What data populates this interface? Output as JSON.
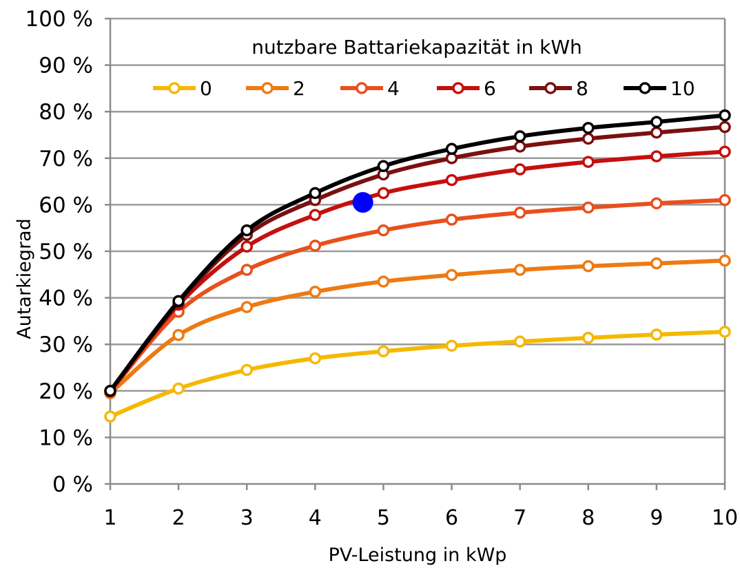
{
  "chart_data": {
    "type": "line",
    "xlabel": "PV-Leistung in kWp",
    "ylabel": "Autarkiegrad",
    "legend_title": "nutzbare Battariekapazität in kWh",
    "legend_position": "top-inside",
    "x": [
      1,
      2,
      3,
      4,
      5,
      6,
      7,
      8,
      9,
      10
    ],
    "xlim": [
      1,
      10
    ],
    "ylim": [
      0,
      100
    ],
    "y_ticks": [
      "0 %",
      "10 %",
      "20 %",
      "30 %",
      "40 %",
      "50 %",
      "60 %",
      "70 %",
      "80 %",
      "90 %",
      "100 %"
    ],
    "x_ticks": [
      "1",
      "2",
      "3",
      "4",
      "5",
      "6",
      "7",
      "8",
      "9",
      "10"
    ],
    "grid": "horizontal",
    "series": [
      {
        "name": "0",
        "color": "#F5B800",
        "values": [
          14.5,
          20.5,
          24.5,
          27,
          28.5,
          29.7,
          30.6,
          31.4,
          32.1,
          32.7
        ]
      },
      {
        "name": "2",
        "color": "#EE7A12",
        "values": [
          19.5,
          32,
          38,
          41.3,
          43.5,
          44.9,
          46,
          46.8,
          47.4,
          48
        ]
      },
      {
        "name": "4",
        "color": "#E8501C",
        "values": [
          19.8,
          37,
          46,
          51.2,
          54.5,
          56.8,
          58.3,
          59.4,
          60.3,
          61
        ]
      },
      {
        "name": "6",
        "color": "#C4100E",
        "values": [
          19.9,
          38.5,
          51,
          57.8,
          62.5,
          65.3,
          67.6,
          69.2,
          70.4,
          71.4
        ]
      },
      {
        "name": "8",
        "color": "#7A1010",
        "values": [
          20,
          39,
          53.5,
          61,
          66.5,
          70,
          72.5,
          74.2,
          75.5,
          76.7
        ]
      },
      {
        "name": "10",
        "color": "#000000",
        "values": [
          20,
          39.3,
          54.5,
          62.5,
          68.3,
          72,
          74.7,
          76.5,
          77.8,
          79.2
        ]
      }
    ],
    "annotations": [
      {
        "type": "marker",
        "shape": "dot",
        "color": "#0000FF",
        "x": 4.7,
        "y": 60.5
      }
    ]
  }
}
